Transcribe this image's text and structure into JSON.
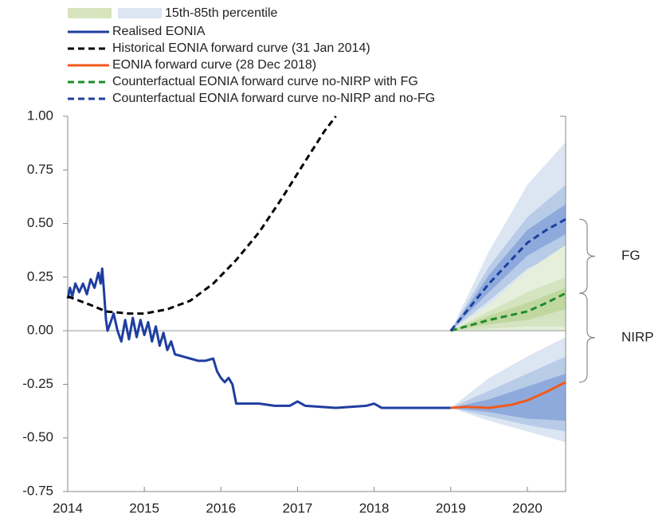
{
  "chart_data": {
    "type": "line",
    "band_legend": {
      "label": "15th-85th percentile",
      "colors": [
        "#d7e4bd",
        "#dce6f2"
      ]
    },
    "bands": [
      {
        "color": "#dce6f2",
        "x": [
          2019,
          2019.5,
          2020,
          2020.5
        ],
        "lower": [
          0,
          0.1,
          0.2,
          0.27
        ],
        "upper": [
          0,
          0.37,
          0.68,
          0.88
        ]
      },
      {
        "color": "#b8cce8",
        "x": [
          2019,
          2019.5,
          2020,
          2020.5
        ],
        "lower": [
          0,
          0.14,
          0.29,
          0.37
        ],
        "upper": [
          0,
          0.3,
          0.53,
          0.68
        ]
      },
      {
        "color": "#8eaadc",
        "x": [
          2019,
          2019.5,
          2020,
          2020.5
        ],
        "lower": [
          0,
          0.18,
          0.35,
          0.45
        ],
        "upper": [
          0,
          0.26,
          0.47,
          0.59
        ]
      },
      {
        "color": "#e6eedc",
        "x": [
          2019,
          2019.5,
          2020,
          2020.5
        ],
        "lower": [
          0,
          0,
          0,
          0
        ],
        "upper": [
          0,
          0.12,
          0.28,
          0.4
        ]
      },
      {
        "color": "#d5e4c0",
        "x": [
          2019,
          2019.5,
          2020,
          2020.5
        ],
        "lower": [
          0,
          0.01,
          0.02,
          0.02
        ],
        "upper": [
          0,
          0.09,
          0.18,
          0.25
        ]
      },
      {
        "color": "#c0d8a0",
        "x": [
          2019,
          2019.5,
          2020,
          2020.5
        ],
        "lower": [
          0,
          0.03,
          0.05,
          0.1
        ],
        "upper": [
          0,
          0.07,
          0.13,
          0.2
        ]
      },
      {
        "color": "#dce6f2",
        "x": [
          2019,
          2019.5,
          2020,
          2020.5
        ],
        "lower": [
          -0.36,
          -0.42,
          -0.47,
          -0.52
        ],
        "upper": [
          -0.36,
          -0.22,
          -0.12,
          -0.03
        ]
      },
      {
        "color": "#b8cce8",
        "x": [
          2019,
          2019.5,
          2020,
          2020.5
        ],
        "lower": [
          -0.36,
          -0.4,
          -0.44,
          -0.47
        ],
        "upper": [
          -0.36,
          -0.28,
          -0.2,
          -0.12
        ]
      },
      {
        "color": "#8eaadc",
        "x": [
          2019,
          2019.5,
          2020,
          2020.5
        ],
        "lower": [
          -0.36,
          -0.38,
          -0.41,
          -0.42
        ],
        "upper": [
          -0.36,
          -0.32,
          -0.26,
          -0.2
        ]
      }
    ],
    "series": [
      {
        "name": "Realised EONIA",
        "color": "#1f3ea0",
        "dash": false,
        "width": 3,
        "x": [
          2014.0,
          2014.03,
          2014.06,
          2014.1,
          2014.15,
          2014.2,
          2014.25,
          2014.3,
          2014.35,
          2014.4,
          2014.43,
          2014.45,
          2014.47,
          2014.5,
          2014.52,
          2014.55,
          2014.6,
          2014.65,
          2014.7,
          2014.75,
          2014.8,
          2014.85,
          2014.9,
          2014.95,
          2015.0,
          2015.05,
          2015.1,
          2015.15,
          2015.2,
          2015.25,
          2015.3,
          2015.35,
          2015.4,
          2015.5,
          2015.6,
          2015.7,
          2015.8,
          2015.9,
          2015.95,
          2016.0,
          2016.05,
          2016.1,
          2016.15,
          2016.2,
          2016.3,
          2016.5,
          2016.7,
          2016.9,
          2017.0,
          2017.1,
          2017.5,
          2017.9,
          2018.0,
          2018.1,
          2018.5,
          2018.9,
          2019.0
        ],
        "values": [
          0.15,
          0.2,
          0.16,
          0.22,
          0.18,
          0.22,
          0.17,
          0.24,
          0.2,
          0.27,
          0.22,
          0.29,
          0.2,
          0.05,
          0.0,
          0.03,
          0.08,
          0.0,
          -0.05,
          0.05,
          -0.04,
          0.06,
          -0.03,
          0.05,
          -0.02,
          0.04,
          -0.05,
          0.02,
          -0.07,
          -0.01,
          -0.09,
          -0.05,
          -0.11,
          -0.12,
          -0.13,
          -0.14,
          -0.14,
          -0.13,
          -0.19,
          -0.22,
          -0.24,
          -0.22,
          -0.25,
          -0.34,
          -0.34,
          -0.34,
          -0.35,
          -0.35,
          -0.33,
          -0.35,
          -0.36,
          -0.35,
          -0.34,
          -0.36,
          -0.36,
          -0.36,
          -0.36
        ]
      },
      {
        "name": "Historical EONIA forward curve (31 Jan 2014)",
        "color": "#000000",
        "dash": true,
        "width": 3,
        "x": [
          2014.0,
          2014.3,
          2014.5,
          2014.8,
          2015.0,
          2015.3,
          2015.6,
          2015.9,
          2016.2,
          2016.5,
          2016.8,
          2017.1,
          2017.35,
          2017.5
        ],
        "values": [
          0.16,
          0.12,
          0.09,
          0.08,
          0.08,
          0.1,
          0.14,
          0.22,
          0.33,
          0.46,
          0.62,
          0.79,
          0.93,
          1.0
        ]
      },
      {
        "name": "EONIA forward curve (28 Dec 2018)",
        "color": "#f05a1e",
        "dash": false,
        "width": 3,
        "x": [
          2019.0,
          2019.2,
          2019.5,
          2019.8,
          2020.0,
          2020.25,
          2020.5
        ],
        "values": [
          -0.36,
          -0.355,
          -0.36,
          -0.345,
          -0.325,
          -0.285,
          -0.24
        ]
      },
      {
        "name": "Counterfactual EONIA forward curve no-NIRP with FG",
        "color": "#1e8c2a",
        "dash": true,
        "width": 3,
        "x": [
          2019.0,
          2019.5,
          2020.0,
          2020.25,
          2020.5
        ],
        "values": [
          0.0,
          0.05,
          0.09,
          0.13,
          0.175
        ]
      },
      {
        "name": "Counterfactual EONIA forward curve no-NIRP and no-FG",
        "color": "#1f3ea0",
        "dash": true,
        "width": 3,
        "x": [
          2019.0,
          2019.5,
          2020.0,
          2020.25,
          2020.5
        ],
        "values": [
          0.0,
          0.22,
          0.41,
          0.47,
          0.52
        ]
      }
    ],
    "annotations": [
      {
        "text": "FG",
        "from": 0.52,
        "to": 0.175
      },
      {
        "text": "NIRP",
        "from": 0.175,
        "to": -0.24
      }
    ],
    "xlim": [
      2014,
      2020.5
    ],
    "xticks": [
      2014,
      2015,
      2016,
      2017,
      2018,
      2019,
      2020
    ],
    "ylim": [
      -0.75,
      1.0
    ],
    "yticks": [
      {
        "value": -0.75,
        "label": "-0.75"
      },
      {
        "value": -0.5,
        "label": "-0.50"
      },
      {
        "value": -0.25,
        "label": "-0.25"
      },
      {
        "value": 0,
        "label": "0.00"
      },
      {
        "value": 0.25,
        "label": "0.25"
      },
      {
        "value": 0.5,
        "label": "0.50"
      },
      {
        "value": 0.75,
        "label": "0.75"
      },
      {
        "value": 1.0,
        "label": "1.00"
      }
    ]
  }
}
